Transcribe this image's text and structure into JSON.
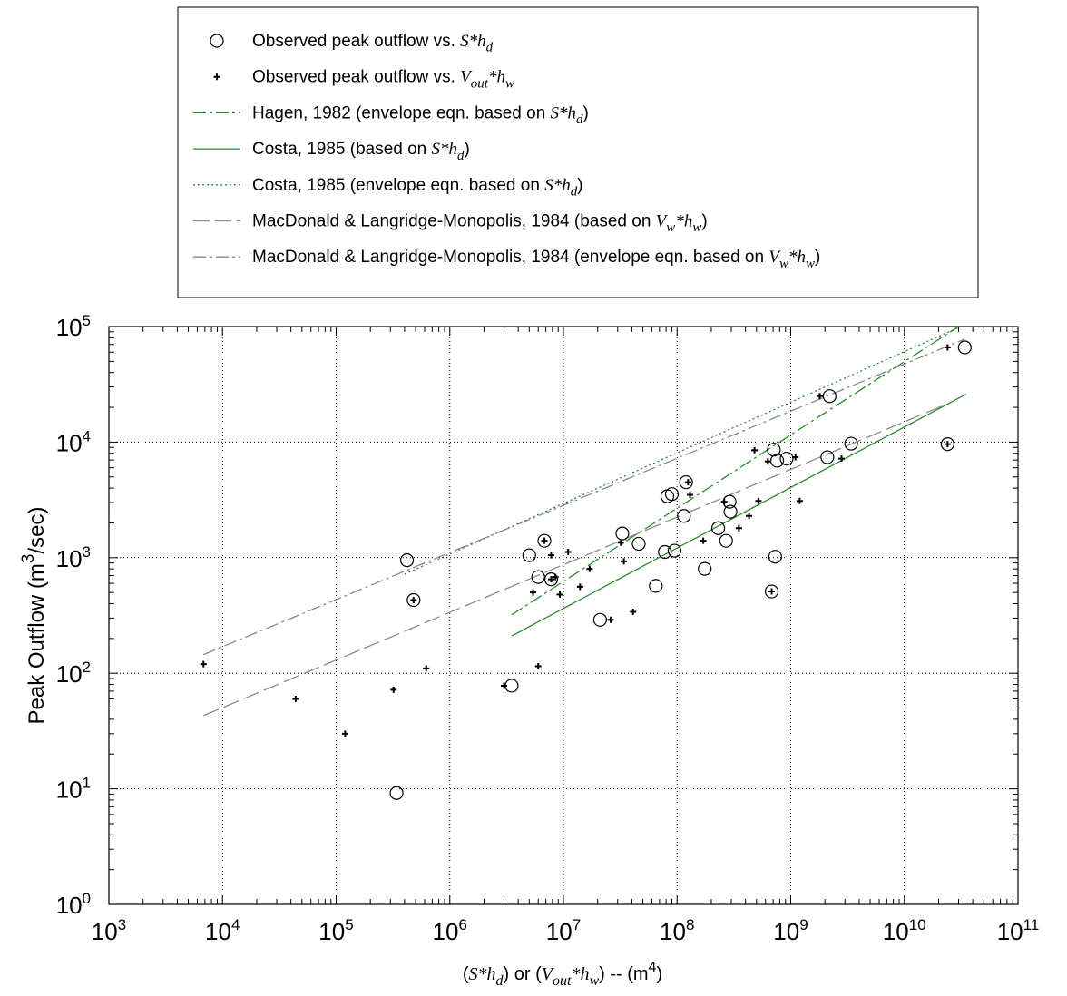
{
  "chart_data": {
    "type": "scatter",
    "title": "",
    "xlabel": "(S*h_d) or (V_out*h_w) -- (m^4)",
    "ylabel": "Peak Outflow (m^3/sec)",
    "xscale": "log",
    "yscale": "log",
    "xlim": [
      1000,
      100000000000
    ],
    "ylim": [
      1,
      100000
    ],
    "grid": true,
    "legend_placement": "top, above plot",
    "x_ticks": [
      {
        "value": 1000,
        "base": "10",
        "exp": "3"
      },
      {
        "value": 10000,
        "base": "10",
        "exp": "4"
      },
      {
        "value": 100000,
        "base": "10",
        "exp": "5"
      },
      {
        "value": 1000000,
        "base": "10",
        "exp": "6"
      },
      {
        "value": 10000000,
        "base": "10",
        "exp": "7"
      },
      {
        "value": 100000000,
        "base": "10",
        "exp": "8"
      },
      {
        "value": 1000000000,
        "base": "10",
        "exp": "9"
      },
      {
        "value": 10000000000,
        "base": "10",
        "exp": "10"
      },
      {
        "value": 100000000000,
        "base": "10",
        "exp": "11"
      }
    ],
    "y_ticks": [
      {
        "value": 1,
        "base": "10",
        "exp": "0"
      },
      {
        "value": 10,
        "base": "10",
        "exp": "1"
      },
      {
        "value": 100,
        "base": "10",
        "exp": "2"
      },
      {
        "value": 1000,
        "base": "10",
        "exp": "3"
      },
      {
        "value": 10000,
        "base": "10",
        "exp": "4"
      },
      {
        "value": 100000,
        "base": "10",
        "exp": "5"
      }
    ],
    "series": [
      {
        "name": "Observed peak outflow vs. S*h_d",
        "legend": [
          {
            "t": "Observed peak outflow vs. "
          },
          {
            "t": "S*h",
            "it": true
          },
          {
            "t": "d",
            "it": true,
            "sub": true
          }
        ],
        "kind": "marker",
        "marker": "circle",
        "color": "#000000",
        "points": [
          [
            420000.0,
            950
          ],
          [
            480000.0,
            430
          ],
          [
            340000.0,
            9.2
          ],
          [
            3500000.0,
            78
          ],
          [
            5000000.0,
            1050
          ],
          [
            6000000.0,
            680
          ],
          [
            6800000.0,
            1400
          ],
          [
            7800000.0,
            650
          ],
          [
            21000000.0,
            290
          ],
          [
            33000000.0,
            1620
          ],
          [
            46000000.0,
            1320
          ],
          [
            65000000.0,
            570
          ],
          [
            78000000.0,
            1120
          ],
          [
            82000000.0,
            3400
          ],
          [
            90000000.0,
            3550
          ],
          [
            95000000.0,
            1150
          ],
          [
            115000000.0,
            2300
          ],
          [
            120000000.0,
            4500
          ],
          [
            175000000.0,
            800
          ],
          [
            230000000.0,
            1800
          ],
          [
            270000000.0,
            1400
          ],
          [
            290000000.0,
            3050
          ],
          [
            295000000.0,
            2500
          ],
          [
            680000000.0,
            510
          ],
          [
            710000000.0,
            8600
          ],
          [
            730000000.0,
            1020
          ],
          [
            760000000.0,
            6900
          ],
          [
            920000000.0,
            7200
          ],
          [
            2100000000.0,
            7400
          ],
          [
            2200000000.0,
            25000
          ],
          [
            3400000000.0,
            9700
          ],
          [
            24000000000.0,
            9600
          ],
          [
            34000000000.0,
            66000
          ]
        ]
      },
      {
        "name": "Observed peak outflow vs. V_out*h_w",
        "legend": [
          {
            "t": "Observed peak outflow vs. "
          },
          {
            "t": "V",
            "it": true
          },
          {
            "t": "out",
            "it": true,
            "sub": true
          },
          {
            "t": "*h",
            "it": true
          },
          {
            "t": "w",
            "it": true,
            "sub": true
          }
        ],
        "kind": "marker",
        "marker": "plus",
        "color": "#000000",
        "points": [
          [
            6800.0,
            120
          ],
          [
            44000.0,
            60
          ],
          [
            120000.0,
            30
          ],
          [
            320000.0,
            72
          ],
          [
            480000.0,
            430
          ],
          [
            620000.0,
            110
          ],
          [
            3000000.0,
            78
          ],
          [
            5400000.0,
            500
          ],
          [
            6000000.0,
            115
          ],
          [
            6800000.0,
            1400
          ],
          [
            7800000.0,
            1050
          ],
          [
            7800000.0,
            650
          ],
          [
            8500000.0,
            680
          ],
          [
            9300000.0,
            480
          ],
          [
            11000000.0,
            1120
          ],
          [
            14000000.0,
            560
          ],
          [
            17000000.0,
            800
          ],
          [
            26000000.0,
            290
          ],
          [
            32000000.0,
            1350
          ],
          [
            34000000.0,
            930
          ],
          [
            41000000.0,
            340
          ],
          [
            125000000.0,
            4500
          ],
          [
            130000000.0,
            3500
          ],
          [
            170000000.0,
            1400
          ],
          [
            260000000.0,
            3050
          ],
          [
            350000000.0,
            1800
          ],
          [
            430000000.0,
            2300
          ],
          [
            480000000.0,
            8500
          ],
          [
            520000000.0,
            3100
          ],
          [
            630000000.0,
            6800
          ],
          [
            680000000.0,
            510
          ],
          [
            1100000000.0,
            7400
          ],
          [
            1200000000.0,
            3100
          ],
          [
            1800000000.0,
            25000
          ],
          [
            2800000000.0,
            7200
          ],
          [
            24000000000.0,
            9600
          ],
          [
            24000000000.0,
            66000
          ]
        ]
      },
      {
        "name": "Hagen, 1982 (envelope eqn. based on S*h_d)",
        "legend": [
          {
            "t": "Hagen, 1982 (envelope eqn. based on "
          },
          {
            "t": "S*h",
            "it": true
          },
          {
            "t": "d",
            "it": true,
            "sub": true
          },
          {
            "t": ")"
          }
        ],
        "kind": "line",
        "dash": "14 4 3 4",
        "color": "#2a8a2a",
        "points": [
          [
            3500000.0,
            320
          ],
          [
            35000000000.0,
            110000
          ]
        ]
      },
      {
        "name": "Costa, 1985 (based on S*h_d)",
        "legend": [
          {
            "t": "Costa, 1985 (based on "
          },
          {
            "t": "S*h",
            "it": true
          },
          {
            "t": "d",
            "it": true,
            "sub": true
          },
          {
            "t": ")"
          }
        ],
        "kind": "line",
        "dash": "",
        "color": "#2a8a2a",
        "points": [
          [
            3500000.0,
            210
          ],
          [
            35000000000.0,
            26000
          ]
        ]
      },
      {
        "name": "Costa, 1985 (envelope eqn. based on S*h_d)",
        "legend": [
          {
            "t": "Costa, 1985 (envelope eqn. based on "
          },
          {
            "t": "S*h",
            "it": true
          },
          {
            "t": "d",
            "it": true,
            "sub": true
          },
          {
            "t": ")"
          }
        ],
        "kind": "line",
        "dash": "2 3",
        "color": "#2a8a2a",
        "points": [
          [
            400000.0,
            720
          ],
          [
            35000000000.0,
            105000
          ]
        ]
      },
      {
        "name": "MacDonald & Langridge-Monopolis, 1984 (based on V_w*h_w)",
        "legend": [
          {
            "t": "MacDonald & Langridge-Monopolis, 1984 (based on "
          },
          {
            "t": "V",
            "it": true
          },
          {
            "t": "w",
            "it": true,
            "sub": true
          },
          {
            "t": "*h",
            "it": true
          },
          {
            "t": "w",
            "it": true,
            "sub": true
          },
          {
            "t": ")"
          }
        ],
        "kind": "line",
        "dash": "18 6",
        "color": "#8a8a8a",
        "points": [
          [
            6800.0,
            43
          ],
          [
            24000000000.0,
            21500
          ]
        ]
      },
      {
        "name": "MacDonald & Langridge-Monopolis, 1984 (envelope eqn. based on V_w*h_w)",
        "legend": [
          {
            "t": "MacDonald & Langridge-Monopolis, 1984 (envelope eqn. based on "
          },
          {
            "t": "V",
            "it": true
          },
          {
            "t": "w",
            "it": true,
            "sub": true
          },
          {
            "t": "*h",
            "it": true
          },
          {
            "t": "w",
            "it": true,
            "sub": true
          },
          {
            "t": ")"
          }
        ],
        "kind": "line",
        "dash": "14 4 3 4",
        "color": "#8a8a8a",
        "points": [
          [
            6800.0,
            145
          ],
          [
            34000000000.0,
            78000
          ]
        ]
      }
    ]
  }
}
